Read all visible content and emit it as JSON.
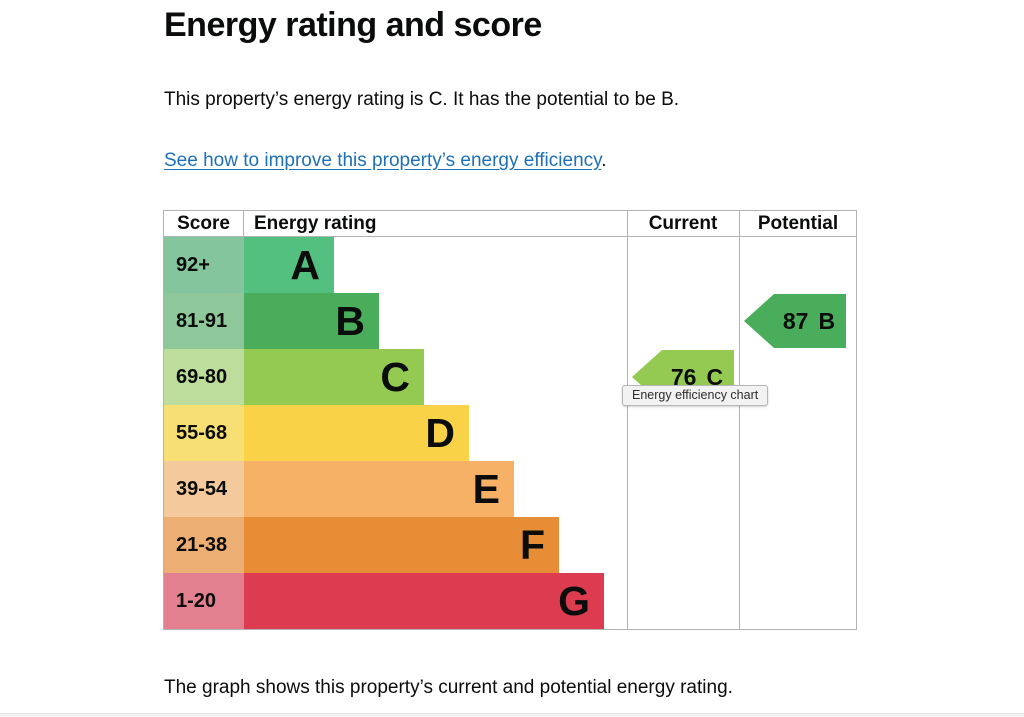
{
  "page": {
    "title": "Energy rating and score",
    "intro": "This property’s energy rating is C. It has the potential to be B.",
    "link_text": "See how to improve this property’s energy efficiency",
    "link_suffix": ".",
    "caption": "The graph shows this property’s current and potential energy rating.",
    "text_color": "#0b0c0c",
    "link_color": "#1d70b8",
    "border_color": "#b1b4b6"
  },
  "chart_data": {
    "type": "bar",
    "title": "Energy efficiency chart",
    "legend_position": "none",
    "grid": false,
    "columns": {
      "score": "Score",
      "rating": "Energy rating",
      "current": "Current",
      "potential": "Potential"
    },
    "bands": [
      {
        "letter": "A",
        "score_range": "92+",
        "bar_color": "#53c07f",
        "cell_color": "#85c59e"
      },
      {
        "letter": "B",
        "score_range": "81-91",
        "bar_color": "#4aad5b",
        "cell_color": "#8ec79a"
      },
      {
        "letter": "C",
        "score_range": "69-80",
        "bar_color": "#94ca52",
        "cell_color": "#bcdd9b"
      },
      {
        "letter": "D",
        "score_range": "55-68",
        "bar_color": "#f9d248",
        "cell_color": "#f8df74"
      },
      {
        "letter": "E",
        "score_range": "39-54",
        "bar_color": "#f7b167",
        "cell_color": "#f4ca9d"
      },
      {
        "letter": "F",
        "score_range": "21-38",
        "bar_color": "#e78d36",
        "cell_color": "#ecae72"
      },
      {
        "letter": "G",
        "score_range": "1-20",
        "bar_color": "#dd3c50",
        "cell_color": "#e3808f"
      }
    ],
    "current": {
      "score": "76",
      "band": "C",
      "band_index": 2,
      "color": "#94ca52"
    },
    "potential": {
      "score": "87",
      "band": "B",
      "band_index": 1,
      "color": "#4aad5b"
    },
    "tooltip": "Energy efficiency chart"
  }
}
